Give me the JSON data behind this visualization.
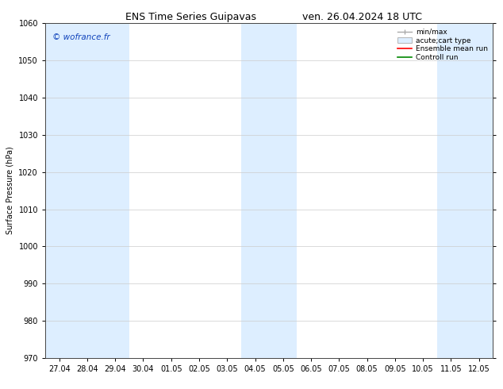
{
  "title_left": "ENS Time Series Guipavas",
  "title_right": "ven. 26.04.2024 18 UTC",
  "ylabel": "Surface Pressure (hPa)",
  "ylim": [
    970,
    1060
  ],
  "yticks": [
    970,
    980,
    990,
    1000,
    1010,
    1020,
    1030,
    1040,
    1050,
    1060
  ],
  "xtick_labels": [
    "27.04",
    "28.04",
    "29.04",
    "30.04",
    "01.05",
    "02.05",
    "03.05",
    "04.05",
    "05.05",
    "06.05",
    "07.05",
    "08.05",
    "09.05",
    "10.05",
    "11.05",
    "12.05"
  ],
  "watermark": "© wofrance.fr",
  "watermark_color": "#1144bb",
  "background_color": "#ffffff",
  "shaded_band_color": "#ddeeff",
  "shaded_indices": [
    0,
    1,
    2,
    7,
    8,
    14,
    15
  ],
  "legend_entries": [
    {
      "label": "min/max",
      "type": "errorbar",
      "color": "#aaaaaa"
    },
    {
      "label": "acute;cart type",
      "type": "box",
      "color": "#ccddee"
    },
    {
      "label": "Ensemble mean run",
      "type": "line",
      "color": "#ff0000"
    },
    {
      "label": "Controll run",
      "type": "line",
      "color": "#008800"
    }
  ],
  "title_fontsize": 9,
  "axis_fontsize": 7,
  "tick_fontsize": 7,
  "legend_fontsize": 6.5
}
